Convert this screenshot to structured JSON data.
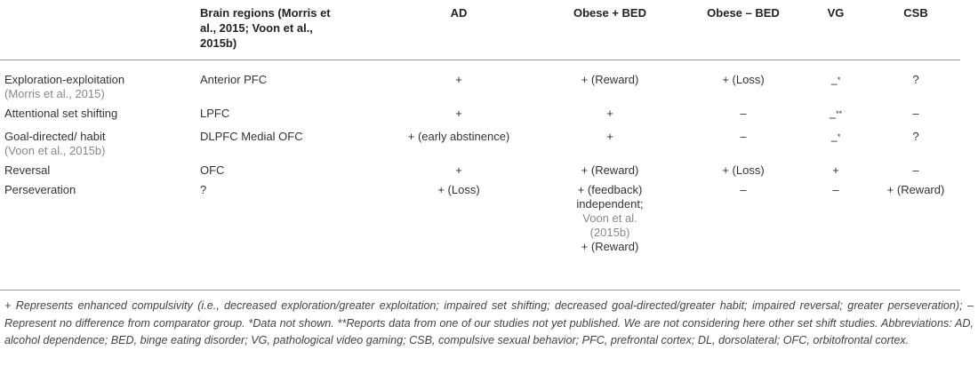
{
  "table": {
    "header": [
      "",
      "Brain regions (Morris et al., 2015; Voon et al., 2015b)",
      "AD",
      "Obese + BED",
      "Obese – BED",
      "VG",
      "CSB"
    ],
    "rows": [
      [
        [
          {
            "text": "Exploration-exploitation"
          },
          {
            "cite": "(Morris et al., 2015)"
          }
        ],
        [
          {
            "text": "Anterior PFC"
          }
        ],
        [
          {
            "text": "+"
          }
        ],
        [
          {
            "text": "+ (Reward)"
          }
        ],
        [
          {
            "text": "+ (Loss)"
          }
        ],
        [
          {
            "text": "–",
            "sup": "*"
          }
        ],
        [
          {
            "text": "?"
          }
        ]
      ],
      [
        [
          {
            "text": "Attentional set shifting"
          }
        ],
        [
          {
            "text": "LPFC"
          }
        ],
        [
          {
            "text": "+"
          }
        ],
        [
          {
            "text": "+"
          }
        ],
        [
          {
            "text": "–"
          }
        ],
        [
          {
            "text": "–",
            "sup": "**"
          }
        ],
        [
          {
            "text": "–"
          }
        ]
      ],
      [
        [
          {
            "text": "Goal-directed/ habit"
          },
          {
            "cite": "(Voon et al., 2015b)"
          }
        ],
        [
          {
            "text": "DLPFC Medial OFC"
          }
        ],
        [
          {
            "text": "+ (early abstinence)"
          }
        ],
        [
          {
            "text": "+"
          }
        ],
        [
          {
            "text": "–"
          }
        ],
        [
          {
            "text": "–",
            "sup": "*"
          }
        ],
        [
          {
            "text": "?"
          }
        ]
      ],
      [
        [
          {
            "text": "Reversal"
          }
        ],
        [
          {
            "text": "OFC"
          }
        ],
        [
          {
            "text": "+"
          }
        ],
        [
          {
            "text": "+ (Reward)"
          }
        ],
        [
          {
            "text": "+ (Loss)"
          }
        ],
        [
          {
            "text": "+"
          }
        ],
        [
          {
            "text": "–"
          }
        ]
      ],
      [
        [
          {
            "text": "Perseveration"
          }
        ],
        [
          {
            "text": "?"
          }
        ],
        [
          {
            "text": "+ (Loss)"
          }
        ],
        [
          {
            "text": "+ (feedback) independent;"
          },
          {
            "cite": "Voon et al. (2015b)"
          },
          {
            "text": "+ (Reward)"
          }
        ],
        [
          {
            "text": "–"
          }
        ],
        [
          {
            "text": "–"
          }
        ],
        [
          {
            "text": "+ (Reward)"
          }
        ]
      ]
    ],
    "footnote": "+ Represents enhanced compulsivity (i.e., decreased exploration/greater exploitation; impaired set shifting; decreased goal-directed/greater habit; impaired reversal; greater perseveration); – Represent no difference from comparator group. *Data not shown. **Reports data from one of our studies not yet published. We are not considering here other set shift studies. Abbreviations: AD, alcohol dependence; BED, binge eating disorder; VG, pathological video gaming; CSB, compulsive sexual behavior; PFC, prefrontal cortex; DL, dorsolateral; OFC, orbitofrontal cortex."
  }
}
